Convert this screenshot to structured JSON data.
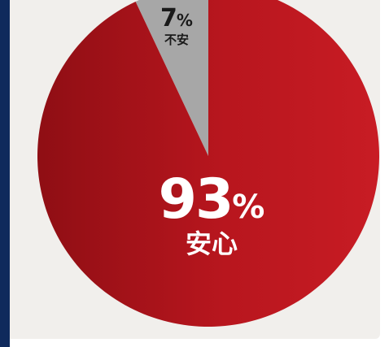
{
  "chart_data": {
    "type": "pie",
    "title": "",
    "categories": [
      "不安",
      "安心"
    ],
    "values": [
      7,
      93
    ],
    "unit": "%",
    "colors": [
      "#a7a7a7",
      "#b8161e"
    ],
    "legend": "none",
    "data_labels": [
      {
        "value": "7",
        "unit": "%",
        "category": "不安"
      },
      {
        "value": "93",
        "unit": "%",
        "category": "安心"
      }
    ]
  }
}
